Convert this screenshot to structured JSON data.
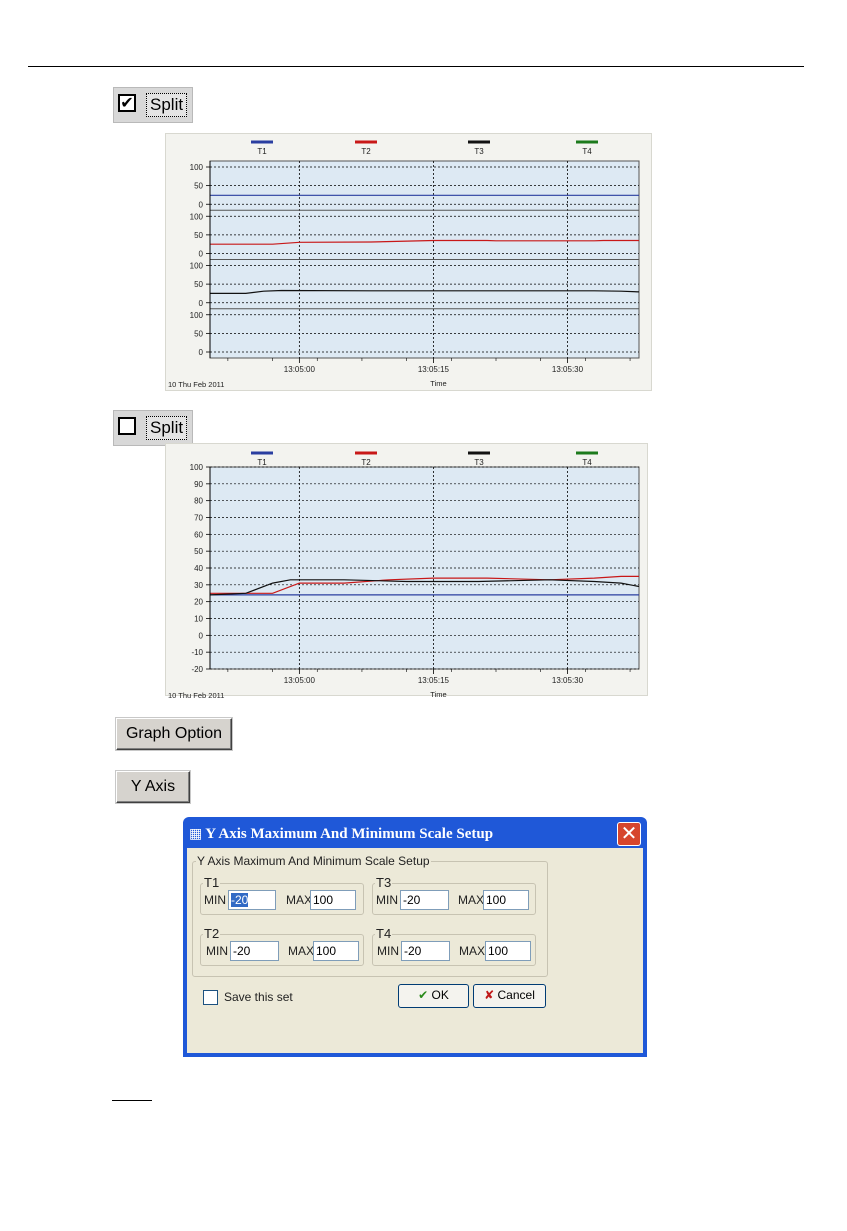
{
  "split_checked": {
    "checked": true,
    "mark": "✔",
    "label": "Split"
  },
  "split_unchecked": {
    "checked": false,
    "mark": "",
    "label": "Split"
  },
  "graph_option_button": "Graph Option",
  "y_axis_button": "Y Axis",
  "colors": {
    "T1": "#2a3ea0",
    "T2": "#c81818",
    "T3": "#111111",
    "T4": "#1c7a1c",
    "plot_bg": "#dde9f3"
  },
  "chart_data": [
    {
      "type": "line",
      "title": "",
      "split": true,
      "legend": [
        "T1",
        "T2",
        "T3",
        "T4"
      ],
      "legend_position": "top",
      "xlabel": "Time",
      "date_label": "10 Thu Feb 2011",
      "x_ticks": [
        "13:05:00",
        "13:05:15",
        "13:05:30"
      ],
      "y_ticks": [
        "100",
        "50",
        "0"
      ],
      "ylim": [
        0,
        100
      ],
      "grid": true,
      "x_range_seconds": [
        -10,
        38
      ],
      "series": [
        {
          "name": "T1",
          "color": "#2a3ea0",
          "points": [
            [
              -10,
              24
            ],
            [
              38,
              24
            ]
          ]
        },
        {
          "name": "T2",
          "color": "#c81818",
          "points": [
            [
              -10,
              25
            ],
            [
              -3,
              25
            ],
            [
              0,
              30
            ],
            [
              8,
              31
            ],
            [
              15,
              35
            ],
            [
              21,
              35
            ],
            [
              22,
              34
            ],
            [
              33,
              34
            ],
            [
              34,
              35
            ],
            [
              38,
              35
            ]
          ]
        },
        {
          "name": "T3",
          "color": "#111111",
          "points": [
            [
              -10,
              25
            ],
            [
              -6,
              25
            ],
            [
              -4,
              31
            ],
            [
              -2,
              33
            ],
            [
              8,
              32
            ],
            [
              20,
              32
            ],
            [
              33,
              32
            ],
            [
              36,
              31
            ],
            [
              38,
              29
            ]
          ]
        },
        {
          "name": "T4",
          "color": "#1c7a1c",
          "points": []
        }
      ]
    },
    {
      "type": "line",
      "title": "",
      "split": false,
      "legend": [
        "T1",
        "T2",
        "T3",
        "T4"
      ],
      "legend_position": "top",
      "xlabel": "Time",
      "date_label": "10 Thu Feb 2011",
      "x_ticks": [
        "13:05:00",
        "13:05:15",
        "13:05:30"
      ],
      "y_ticks": [
        "100",
        "90",
        "80",
        "70",
        "60",
        "50",
        "40",
        "30",
        "20",
        "10",
        "0",
        "-10",
        "-20"
      ],
      "ylim": [
        -20,
        100
      ],
      "grid": true,
      "x_range_seconds": [
        -10,
        38
      ],
      "series": [
        {
          "name": "T1",
          "color": "#2a3ea0",
          "points": [
            [
              -10,
              24
            ],
            [
              38,
              24
            ]
          ]
        },
        {
          "name": "T2",
          "color": "#c81818",
          "points": [
            [
              -10,
              25
            ],
            [
              -3,
              25
            ],
            [
              0,
              31
            ],
            [
              5,
              31
            ],
            [
              10,
              33
            ],
            [
              15,
              34
            ],
            [
              21,
              34
            ],
            [
              28,
              33
            ],
            [
              33,
              34
            ],
            [
              36,
              35
            ],
            [
              38,
              35
            ]
          ]
        },
        {
          "name": "T3",
          "color": "#111111",
          "points": [
            [
              -10,
              24
            ],
            [
              -6,
              25
            ],
            [
              -3,
              31
            ],
            [
              -1,
              33
            ],
            [
              5,
              33
            ],
            [
              12,
              32
            ],
            [
              20,
              32
            ],
            [
              28,
              33
            ],
            [
              33,
              32
            ],
            [
              36,
              31
            ],
            [
              38,
              29
            ]
          ]
        },
        {
          "name": "T4",
          "color": "#1c7a1c",
          "points": []
        }
      ]
    }
  ],
  "dialog": {
    "title": "Y Axis Maximum And Minimum Scale Setup",
    "group_title": "Y Axis Maximum And Minimum Scale Setup",
    "channels": [
      {
        "name": "T1",
        "min_label": "MIN",
        "min": "-20",
        "max_label": "MAX",
        "max": "100"
      },
      {
        "name": "T3",
        "min_label": "MIN",
        "min": "-20",
        "max_label": "MAX",
        "max": "100"
      },
      {
        "name": "T2",
        "min_label": "MIN",
        "min": "-20",
        "max_label": "MAX",
        "max": "100"
      },
      {
        "name": "T4",
        "min_label": "MIN",
        "min": "-20",
        "max_label": "MAX",
        "max": "100"
      }
    ],
    "save_label": "Save this set",
    "ok_label": "OK",
    "cancel_label": "Cancel",
    "ok_icon": "✔",
    "cancel_icon": "✘",
    "close_icon": "✕",
    "grid_icon": "▦"
  }
}
